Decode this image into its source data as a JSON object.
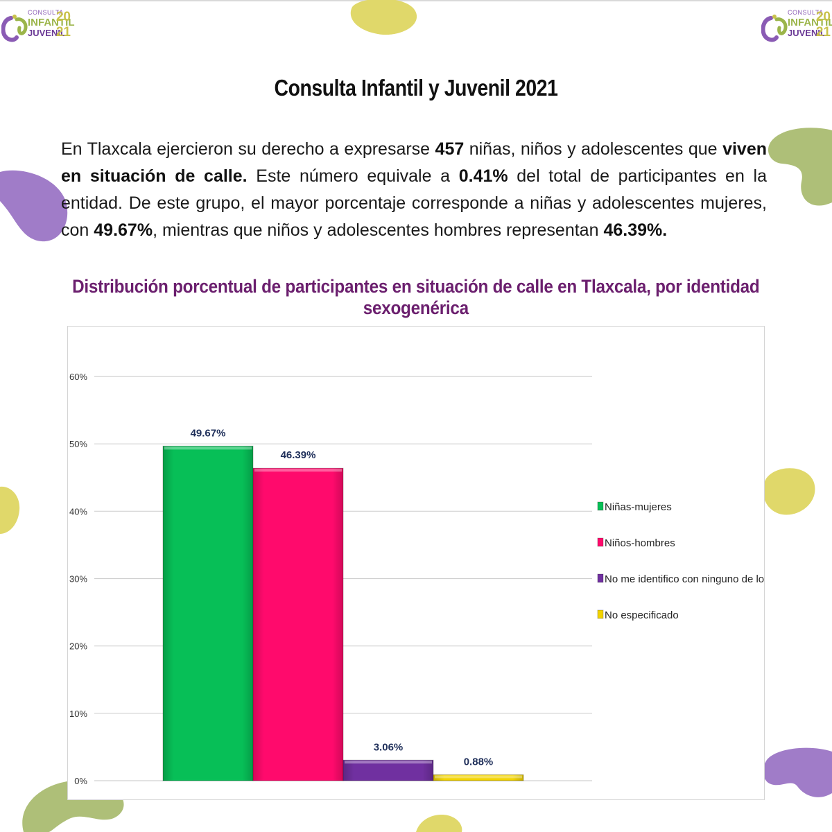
{
  "logo": {
    "line1": "CONSULTA",
    "line2": "INFANTIL",
    "line3": "JUVENIL",
    "year_top": "20",
    "year_bottom": "21"
  },
  "title": "Consulta Infantil y Juvenil 2021",
  "intro": {
    "p1": "En Tlaxcala ejercieron su derecho a expresarse ",
    "b1": "457",
    "p2": " niñas, niños y adolescentes que ",
    "b2": "viven en situación de calle.",
    "p3": " Este número equivale a ",
    "b3": "0.41%",
    "p4": " del total de participantes en la entidad. De este grupo, el mayor porcentaje corresponde a niñas y adolescentes mujeres, con ",
    "b4": "49.67%",
    "p5": ", mientras que niños y adolescentes hombres representan ",
    "b5": "46.39%."
  },
  "colors": {
    "green": "#07bf57",
    "pink": "#ff0a6c",
    "purple": "#7030a0",
    "yellow": "#f2d300",
    "title_purple": "#6b1f6e",
    "deco_purple": "#a07cc8",
    "deco_green": "#aebf78",
    "deco_yellow": "#e0d86a"
  },
  "chart_data": {
    "type": "bar",
    "title": "Distribución porcentual de participantes en situación de calle en Tlaxcala, por identidad sexogenérica",
    "categories": [
      "Niñas-mujeres",
      "Niños-hombres",
      "No me identifico con ninguno de los dos",
      "No especificado"
    ],
    "values": [
      49.67,
      46.39,
      3.06,
      0.88
    ],
    "value_labels": [
      "49.67%",
      "46.39%",
      "3.06%",
      "0.88%"
    ],
    "series_colors": [
      "#07bf57",
      "#ff0a6c",
      "#7030a0",
      "#f2d300"
    ],
    "yticks": [
      "0%",
      "10%",
      "20%",
      "30%",
      "40%",
      "50%",
      "60%"
    ],
    "ylim": [
      0,
      60
    ],
    "xlabel": "",
    "ylabel": "",
    "grid": true,
    "legend_position": "right"
  }
}
